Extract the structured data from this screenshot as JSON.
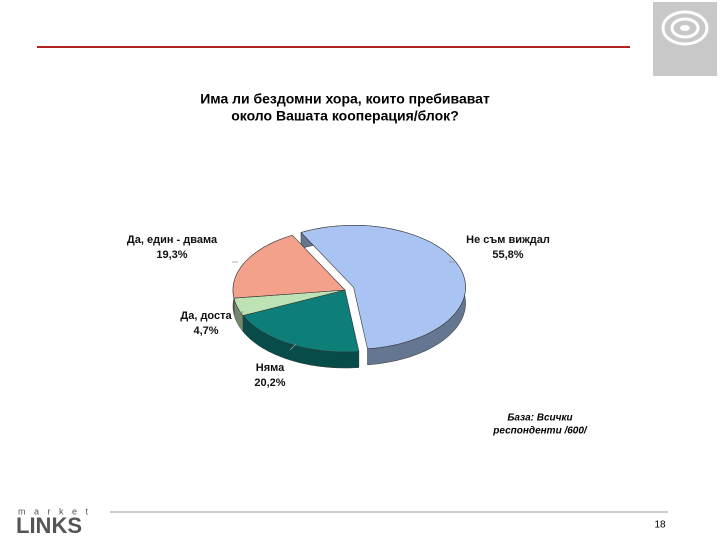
{
  "chart_data": {
    "type": "pie",
    "title": [
      "Има ли бездомни хора, които пребивават",
      "около Вашата кооперация/блок?"
    ],
    "categories": [
      "Не съм виждал",
      "Няма",
      "Да, доста",
      "Да, един - двама"
    ],
    "values": [
      55.8,
      20.2,
      4.7,
      19.3
    ],
    "value_labels": [
      "55,8%",
      "20,2%",
      "4,7%",
      "19,3%"
    ],
    "colors": [
      "#a9c4f2",
      "#0e7e79",
      "#bde3b4",
      "#f4a18c"
    ],
    "exploded": [
      true,
      false,
      false,
      false
    ],
    "footnote": [
      "База: Всички",
      "респонденти   /600/"
    ]
  },
  "page_number": "18",
  "logo": {
    "top": "m a r k e t",
    "bottom": "LINKS"
  }
}
